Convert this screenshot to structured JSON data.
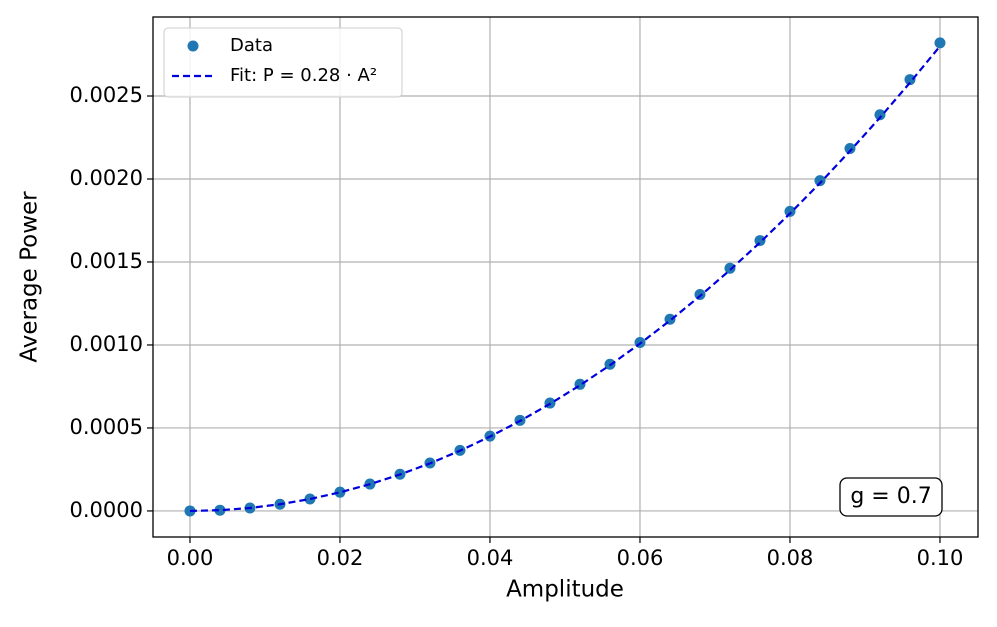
{
  "chart_data": {
    "type": "scatter",
    "xlabel": "Amplitude",
    "ylabel": "Average Power",
    "annotation": "g = 0.7",
    "xlim": [
      -0.00493,
      0.10507
    ],
    "ylim": [
      -0.000157,
      0.002976
    ],
    "xticks": [
      {
        "value": 0,
        "label": "0.00"
      },
      {
        "value": 0.02,
        "label": "0.02"
      },
      {
        "value": 0.04,
        "label": "0.04"
      },
      {
        "value": 0.06,
        "label": "0.06"
      },
      {
        "value": 0.08,
        "label": "0.08"
      },
      {
        "value": 0.1,
        "label": "0.10"
      }
    ],
    "yticks": [
      {
        "value": 0,
        "label": "0.0000"
      },
      {
        "value": 0.0005,
        "label": "0.0005"
      },
      {
        "value": 0.001,
        "label": "0.0010"
      },
      {
        "value": 0.0015,
        "label": "0.0015"
      },
      {
        "value": 0.002,
        "label": "0.0020"
      },
      {
        "value": 0.0025,
        "label": "0.0025"
      }
    ],
    "grid": true,
    "legend": "upper left",
    "series": [
      {
        "name": "Data",
        "color": "#1f77b4",
        "mode": "markers",
        "x": [
          0,
          0.004,
          0.008,
          0.012,
          0.016,
          0.02,
          0.024,
          0.028,
          0.032,
          0.036,
          0.04,
          0.044,
          0.048,
          0.052,
          0.056,
          0.06,
          0.064,
          0.068,
          0.072,
          0.076,
          0.08,
          0.084,
          0.088,
          0.092,
          0.096,
          0.1
        ],
        "values": [
          0,
          4.5e-06,
          1.8e-05,
          4.06e-05,
          7.22e-05,
          0.000113,
          0.000162,
          0.000221,
          0.000289,
          0.000365,
          0.000451,
          0.000546,
          0.00065,
          0.000763,
          0.000884,
          0.001015,
          0.001155,
          0.001304,
          0.001462,
          0.001629,
          0.001805,
          0.00199,
          0.002184,
          0.002387,
          0.002599,
          0.00282
        ]
      },
      {
        "name": "Fit: P = 0.28 · A²",
        "color": "#0000dd",
        "mode": "dashed-line",
        "x": [
          0,
          0.004,
          0.008,
          0.012,
          0.016,
          0.02,
          0.024,
          0.028,
          0.032,
          0.036,
          0.04,
          0.044,
          0.048,
          0.052,
          0.056,
          0.06,
          0.064,
          0.068,
          0.072,
          0.076,
          0.08,
          0.084,
          0.088,
          0.092,
          0.096,
          0.1
        ],
        "values": [
          0,
          4.48e-06,
          1.792e-05,
          4.032e-05,
          7.168e-05,
          0.000112,
          0.00016128,
          0.00021952,
          0.00028672,
          0.00036288,
          0.000448,
          0.00054208,
          0.00064512,
          0.00075712,
          0.00087808,
          0.001008,
          0.00114688,
          0.00129472,
          0.00145152,
          0.00161728,
          0.001792,
          0.00197568,
          0.00216832,
          0.00236992,
          0.00258048,
          0.0028
        ]
      }
    ]
  }
}
